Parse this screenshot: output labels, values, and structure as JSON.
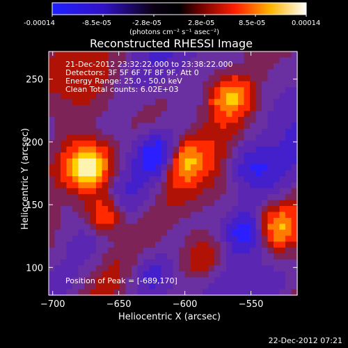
{
  "colorbar": {
    "tick_labels": [
      "-0.00014",
      "-8.5e-05",
      "-2.8e-05",
      "2.8e-05",
      "8.5e-05",
      "0.00014"
    ],
    "unit_label": "(photons cm⁻² s⁻¹ asec⁻²)",
    "min": -0.00014,
    "max": 0.00014,
    "colormap": "blue-black-red-yellow-white"
  },
  "chart": {
    "title": "Reconstructed RHESSI Image",
    "xlabel": "Heliocentric X (arcsec)",
    "ylabel": "Heliocentric Y (arcsec)",
    "annotations": [
      "21-Dec-2012 23:32:22.000 to 23:38:22.000",
      "Detectors: 3F 5F 6F 7F 8F 9F, Att 0",
      "Energy Range: 25.0 - 50.0 keV",
      "Clean    Total counts: 6.02E+03"
    ],
    "peak_label": "Position of Peak = [-689,170]",
    "footer": "22-Dec-2012 07:21"
  },
  "chart_data": {
    "type": "heatmap",
    "title": "Reconstructed RHESSI Image",
    "xlabel": "Heliocentric X (arcsec)",
    "ylabel": "Heliocentric Y (arcsec)",
    "xlim": [
      -703,
      -515
    ],
    "ylim": [
      78,
      272
    ],
    "x_ticks": [
      -700,
      -650,
      -600,
      -550
    ],
    "y_ticks": [
      100,
      150,
      200,
      250
    ],
    "peak": [
      -689,
      170
    ],
    "value_range": [
      -0.00014,
      0.00014
    ],
    "value_unit": "photons cm-2 s-1 asec-2"
  },
  "colors": {
    "background": "#000000",
    "foreground": "#ffffff"
  }
}
